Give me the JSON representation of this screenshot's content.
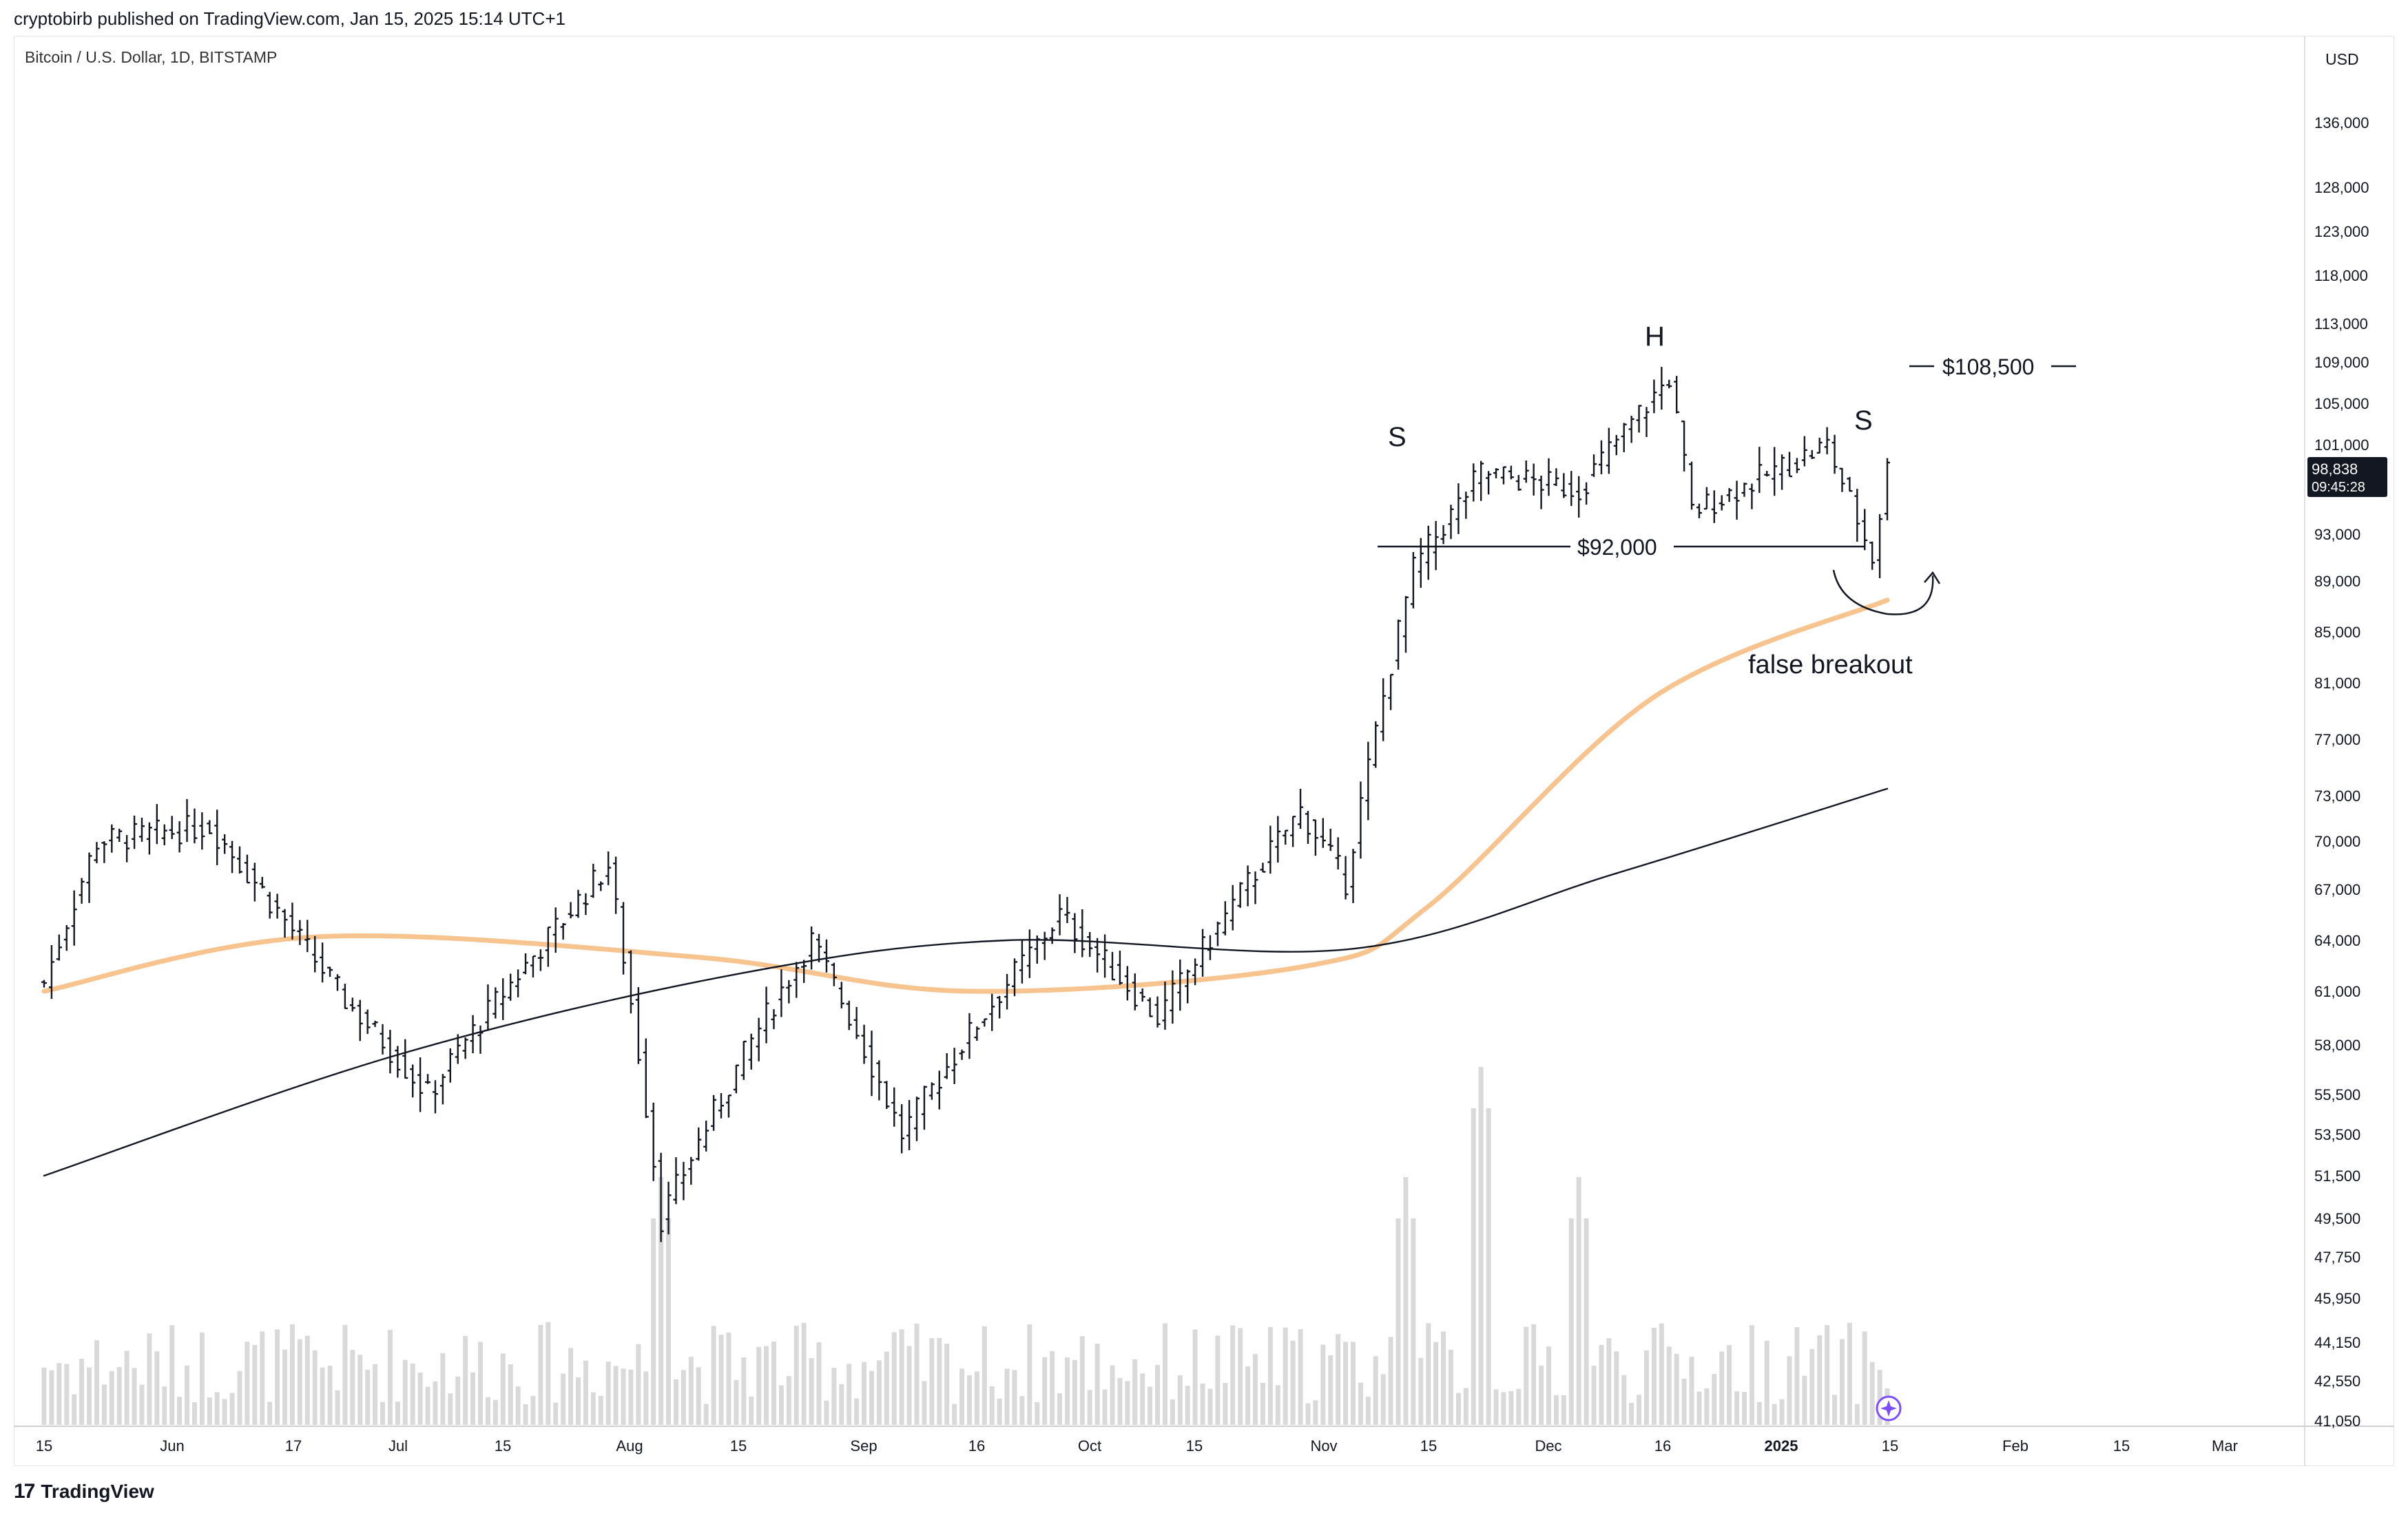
{
  "header": {
    "published": "cryptobirb published on TradingView.com, Jan 15, 2025 15:14 UTC+1"
  },
  "chart_header": {
    "symbol": "Bitcoin / U.S. Dollar, 1D, BITSTAMP"
  },
  "price_axis": {
    "currency": "USD",
    "ticks": [
      136000,
      128000,
      123000,
      118000,
      113000,
      109000,
      105000,
      101000,
      93000,
      89000,
      85000,
      81000,
      77000,
      73000,
      70000,
      67000,
      64000,
      61000,
      58000,
      55500,
      53500,
      51500,
      49500,
      47750,
      45950,
      44150,
      42550,
      41050
    ],
    "tick_labels": [
      "136,000",
      "128,000",
      "123,000",
      "118,000",
      "113,000",
      "109,000",
      "105,000",
      "101,000",
      "93,000",
      "89,000",
      "85,000",
      "81,000",
      "77,000",
      "73,000",
      "70,000",
      "67,000",
      "64,000",
      "61,000",
      "58,000",
      "55,500",
      "53,500",
      "51,500",
      "49,500",
      "47,750",
      "45,950",
      "44,150",
      "42,550",
      "41,050"
    ],
    "last_price": "98,838",
    "countdown": "09:45:28"
  },
  "time_axis": {
    "labels": [
      "15",
      "Jun",
      "17",
      "Jul",
      "15",
      "Aug",
      "15",
      "Sep",
      "16",
      "Oct",
      "15",
      "Nov",
      "15",
      "Dec",
      "16",
      "2025",
      "15",
      "Feb",
      "15",
      "Mar"
    ]
  },
  "annotations": {
    "left_shoulder": "S",
    "head": "H",
    "right_shoulder": "S",
    "neckline": "$92,000",
    "target": "$108,500",
    "note": "false breakout"
  },
  "footer": {
    "brand": "TradingView"
  },
  "colors": {
    "candle": "#131722",
    "volume": "#d9d9d9",
    "ma_fast": "#f7c48f",
    "ma_fast_gray": "#9e9e9e",
    "ma_slow": "#131722",
    "price_tag": "#131722"
  },
  "chart_data": {
    "type": "bar",
    "symbol": "BTC/USD",
    "timeframe": "1D",
    "x_range": [
      "2024-05-15",
      "2025-03-10"
    ],
    "last_close": 98838,
    "ohlc_keypoints": [
      {
        "date": "2024-05-15",
        "price": 61500
      },
      {
        "date": "2024-05-22",
        "price": 70000
      },
      {
        "date": "2024-06-06",
        "price": 71000
      },
      {
        "date": "2024-06-24",
        "price": 60500
      },
      {
        "date": "2024-07-05",
        "price": 55500
      },
      {
        "date": "2024-07-29",
        "price": 68500
      },
      {
        "date": "2024-08-05",
        "price": 49500
      },
      {
        "date": "2024-08-25",
        "price": 64000
      },
      {
        "date": "2024-09-06",
        "price": 53500
      },
      {
        "date": "2024-09-27",
        "price": 65500
      },
      {
        "date": "2024-10-10",
        "price": 59500
      },
      {
        "date": "2024-10-29",
        "price": 72000
      },
      {
        "date": "2024-11-04",
        "price": 67500
      },
      {
        "date": "2024-11-13",
        "price": 90000
      },
      {
        "date": "2024-11-22",
        "price": 98500
      },
      {
        "date": "2024-12-05",
        "price": 97000
      },
      {
        "date": "2024-12-17",
        "price": 107500
      },
      {
        "date": "2024-12-20",
        "price": 95000
      },
      {
        "date": "2025-01-07",
        "price": 101000
      },
      {
        "date": "2025-01-13",
        "price": 91000
      },
      {
        "date": "2025-01-15",
        "price": 98838
      }
    ],
    "volume_spikes": [
      {
        "date": "2024-08-05",
        "level": "high"
      },
      {
        "date": "2024-11-12",
        "level": "high"
      },
      {
        "date": "2024-11-22",
        "level": "highest"
      },
      {
        "date": "2024-12-05",
        "level": "high"
      }
    ],
    "moving_averages": [
      {
        "name": "",
        "values": [
          {
            "date": "2024-05-15",
            "price": 61000
          },
          {
            "date": "2024-06-20",
            "price": 64200
          },
          {
            "date": "2024-08-10",
            "price": 63000
          },
          {
            "date": "2024-09-15",
            "price": 61000
          },
          {
            "date": "2024-10-30",
            "price": 62500
          },
          {
            "date": "2024-11-15",
            "price": 66000
          },
          {
            "date": "2024-12-15",
            "price": 80000
          },
          {
            "date": "2025-01-15",
            "price": 87500
          }
        ]
      },
      {
        "name": "",
        "values": [
          {
            "date": "2024-05-15",
            "price": 51500
          },
          {
            "date": "2024-07-01",
            "price": 57500
          },
          {
            "date": "2024-08-15",
            "price": 62000
          },
          {
            "date": "2024-09-20",
            "price": 64000
          },
          {
            "date": "2024-11-05",
            "price": 63500
          },
          {
            "date": "2024-12-10",
            "price": 68000
          },
          {
            "date": "2025-01-15",
            "price": 73500
          }
        ]
      }
    ],
    "levels": [
      {
        "label": "$92,000",
        "price": 92000
      },
      {
        "label": "$108,500",
        "price": 108500
      }
    ]
  }
}
